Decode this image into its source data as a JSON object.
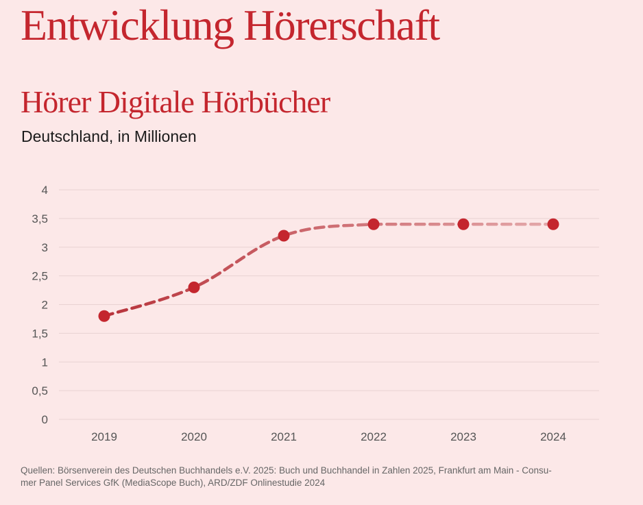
{
  "header": {
    "title": "Entwicklung Hörerschaft"
  },
  "chart_data": {
    "type": "line",
    "title": "Hörer Digitale Hörbücher",
    "subtitle": "Deutschland, in Millionen",
    "categories": [
      "2019",
      "2020",
      "2021",
      "2022",
      "2023",
      "2024"
    ],
    "series": [
      {
        "values": [
          1.8,
          2.3,
          3.2,
          3.4,
          3.4,
          3.4
        ]
      }
    ],
    "ylim": [
      0,
      4
    ],
    "yticks": [
      "0",
      "0,5",
      "1",
      "1,5",
      "2",
      "2,5",
      "3",
      "3,5",
      "4"
    ],
    "grid": true,
    "line_style": "dashed",
    "colors": {
      "point": "#c4262e",
      "line_start": "#b7323a",
      "line_end": "#e4a9ab",
      "grid": "#e8d2d2"
    }
  },
  "footer": {
    "source_line1": "Quellen: Börsenverein des Deutschen Buchhandels e.V. 2025: Buch und Buchhandel in Zahlen 2025, Frankfurt am Main - Consu-",
    "source_line2": "mer Panel Services GfK (MediaScope Buch),  ARD/ZDF Onlinestudie 2024"
  }
}
